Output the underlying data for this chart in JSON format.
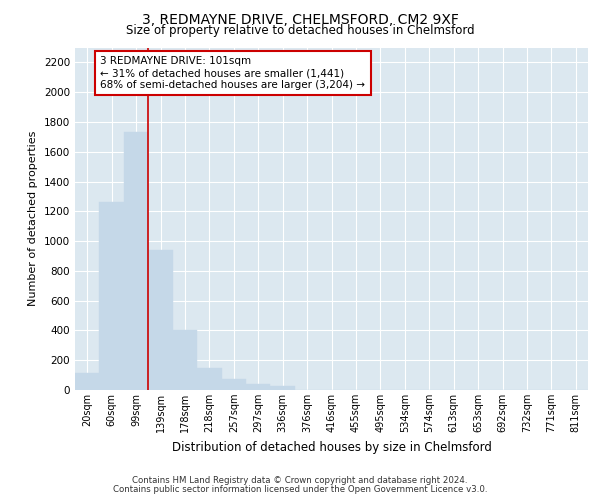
{
  "title": "3, REDMAYNE DRIVE, CHELMSFORD, CM2 9XF",
  "subtitle": "Size of property relative to detached houses in Chelmsford",
  "xlabel": "Distribution of detached houses by size in Chelmsford",
  "ylabel": "Number of detached properties",
  "categories": [
    "20sqm",
    "60sqm",
    "99sqm",
    "139sqm",
    "178sqm",
    "218sqm",
    "257sqm",
    "297sqm",
    "336sqm",
    "376sqm",
    "416sqm",
    "455sqm",
    "495sqm",
    "534sqm",
    "574sqm",
    "613sqm",
    "653sqm",
    "692sqm",
    "732sqm",
    "771sqm",
    "811sqm"
  ],
  "values": [
    115,
    1260,
    1730,
    940,
    405,
    150,
    75,
    40,
    25,
    0,
    0,
    0,
    0,
    0,
    0,
    0,
    0,
    0,
    0,
    0,
    0
  ],
  "bar_color": "#c5d8e8",
  "bar_edge_color": "#c5d8e8",
  "background_color": "#dce8f0",
  "grid_color": "#ffffff",
  "red_line_x": 2.5,
  "annotation_text": "3 REDMAYNE DRIVE: 101sqm\n← 31% of detached houses are smaller (1,441)\n68% of semi-detached houses are larger (3,204) →",
  "annotation_box_color": "#ffffff",
  "annotation_box_edge": "#cc0000",
  "ylim": [
    0,
    2300
  ],
  "yticks": [
    0,
    200,
    400,
    600,
    800,
    1000,
    1200,
    1400,
    1600,
    1800,
    2000,
    2200
  ],
  "footer1": "Contains HM Land Registry data © Crown copyright and database right 2024.",
  "footer2": "Contains public sector information licensed under the Open Government Licence v3.0."
}
